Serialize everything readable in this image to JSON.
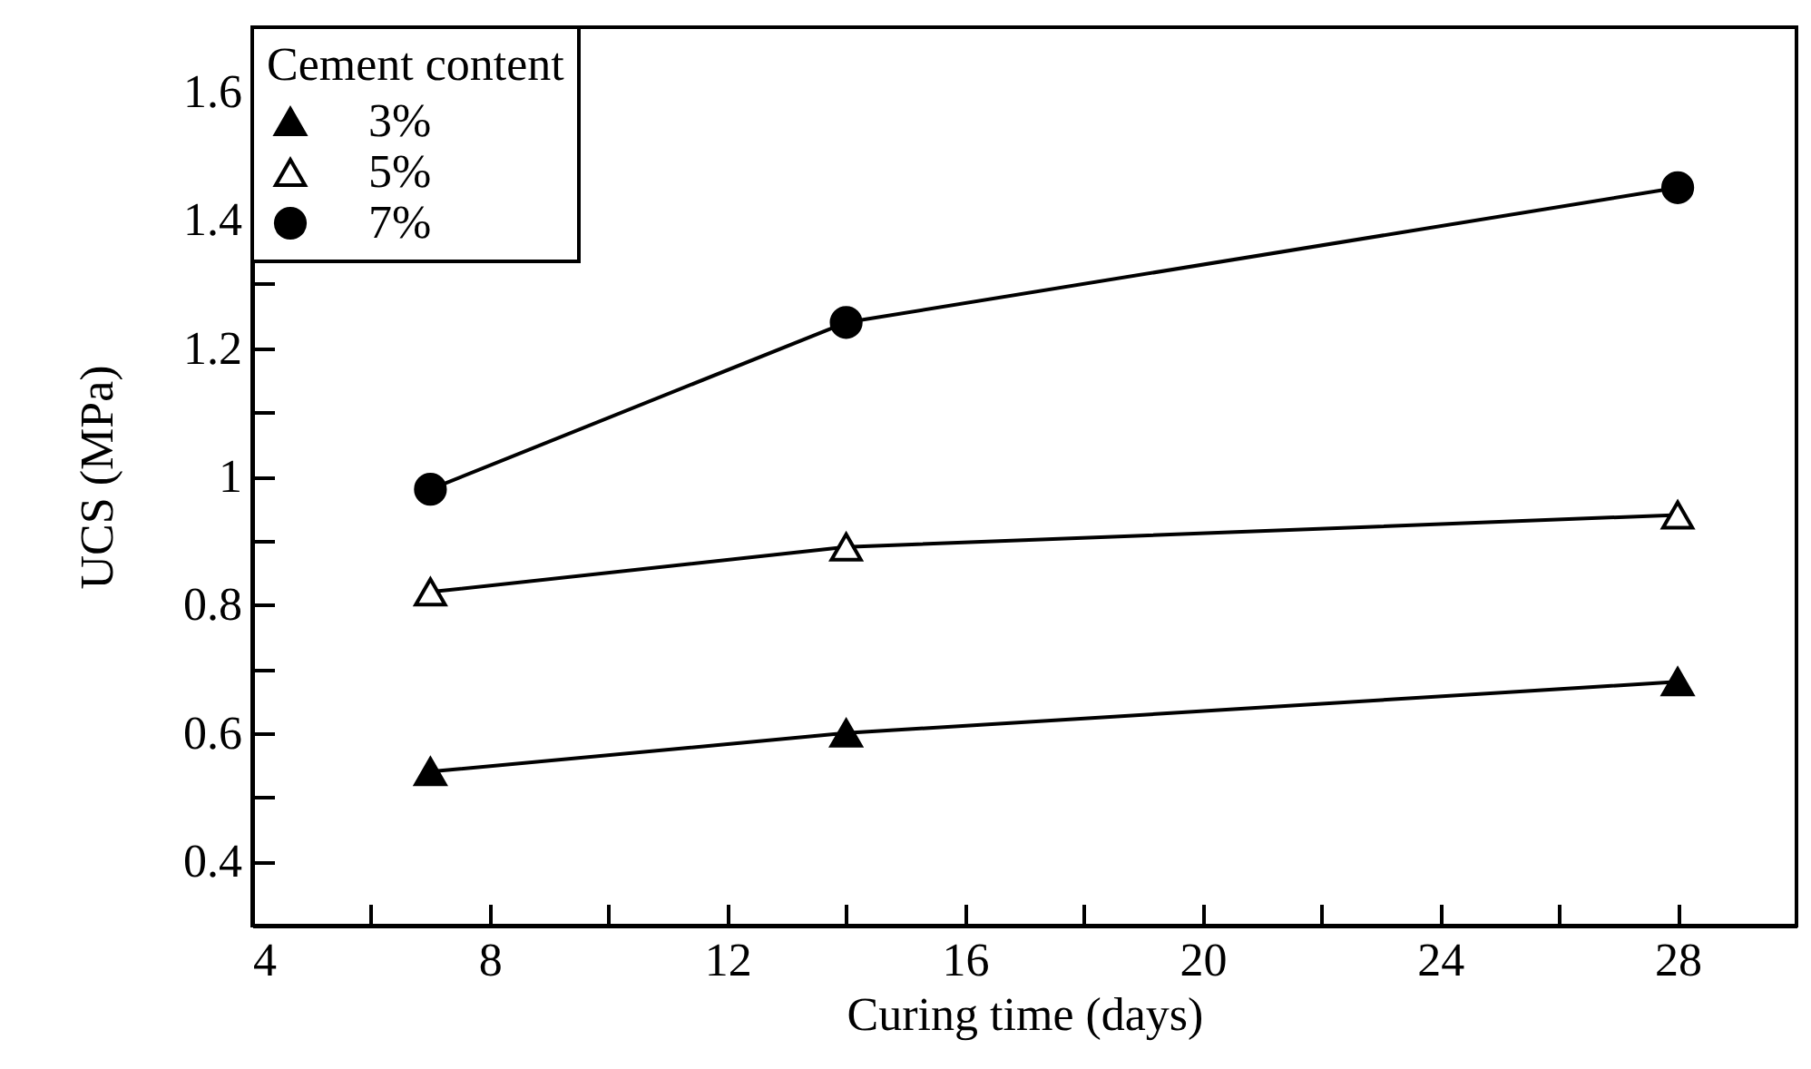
{
  "chart_data": {
    "type": "line",
    "xlabel": "Curing time (days)",
    "ylabel": "UCS (MPa)",
    "legend_title": "Cement content",
    "legend": "top left",
    "grid": false,
    "x": [
      7,
      14,
      28
    ],
    "series": [
      {
        "name": "3%",
        "color": "#000000",
        "marker": "triangle",
        "values": [
          0.54,
          0.6,
          0.68
        ]
      },
      {
        "name": "5%",
        "color": "#000000",
        "marker": "triangle-open",
        "values": [
          0.82,
          0.89,
          0.94
        ]
      },
      {
        "name": "7%",
        "color": "#000000",
        "marker": "circle",
        "values": [
          0.98,
          1.24,
          1.45
        ]
      }
    ],
    "xlim": [
      4,
      30
    ],
    "xticks": [
      4,
      {
        "value": 6,
        "label": null
      },
      8,
      {
        "value": 10,
        "label": null
      },
      12,
      {
        "value": 14,
        "label": null
      },
      16,
      {
        "value": 18,
        "label": null
      },
      20,
      {
        "value": 22,
        "label": null
      },
      24,
      {
        "value": 26,
        "label": null
      },
      28
    ],
    "ylim": [
      0.3,
      1.7
    ],
    "yticks": [
      0.4,
      {
        "value": 0.5,
        "label": null
      },
      0.6,
      {
        "value": 0.7,
        "label": null
      },
      0.8,
      {
        "value": 0.9,
        "label": null
      },
      1,
      {
        "value": 1.1,
        "label": null
      },
      1.2,
      {
        "value": 1.3,
        "label": null
      },
      1.4,
      {
        "value": 1.5,
        "label": null
      },
      1.6
    ]
  }
}
